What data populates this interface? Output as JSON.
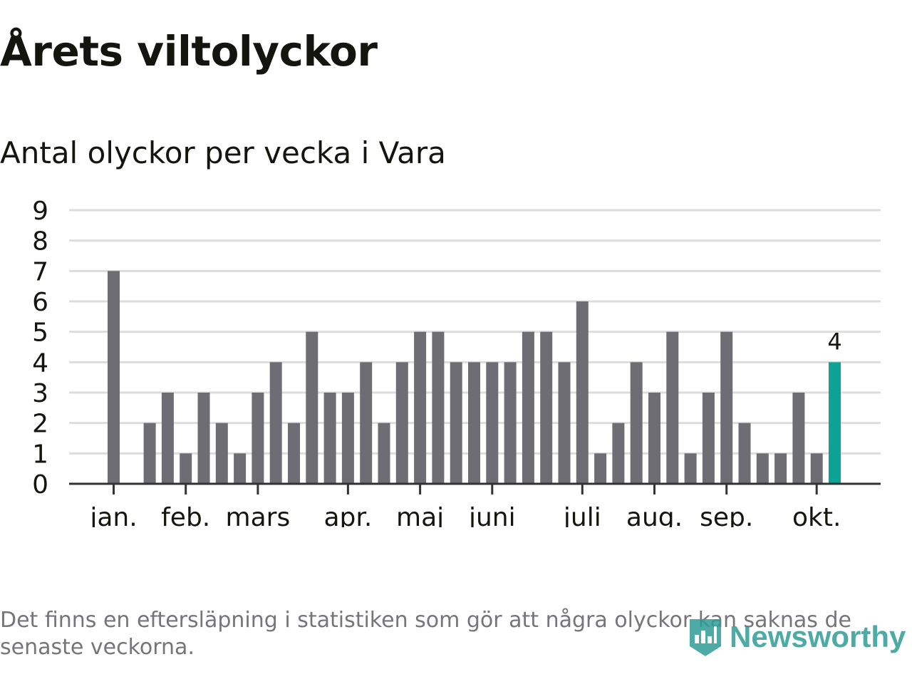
{
  "header": {
    "title": "Årets viltolyckor",
    "subtitle": "Antal olyckor per vecka i Vara"
  },
  "footnote": "Det finns en eftersläpning i statistiken som gör att några olyckor kan saknas de senaste veckorna.",
  "logo": {
    "text": "Newsworthy",
    "icon": "bar-chart-badge-icon"
  },
  "colors": {
    "bar": "#6e6d73",
    "highlight": "#0aa396",
    "grid": "#dddddd",
    "axis": "#333333",
    "text": "#15150f",
    "muted": "#75757a",
    "brand": "#2f9c95"
  },
  "chart_data": {
    "type": "bar",
    "title": "Årets viltolyckor",
    "subtitle": "Antal olyckor per vecka i Vara",
    "xlabel": "",
    "ylabel": "",
    "ylim": [
      0,
      9
    ],
    "yticks": [
      "0",
      "1",
      "2",
      "3",
      "4",
      "5",
      "6",
      "7",
      "8",
      "9"
    ],
    "grid": true,
    "values": [
      7,
      0,
      2,
      3,
      1,
      3,
      2,
      1,
      3,
      4,
      2,
      5,
      3,
      3,
      4,
      2,
      4,
      5,
      5,
      4,
      4,
      4,
      4,
      5,
      5,
      4,
      6,
      1,
      2,
      4,
      3,
      5,
      1,
      3,
      5,
      2,
      1,
      1,
      3,
      1,
      4
    ],
    "highlight_index": 40,
    "highlight_label": "4",
    "month_labels": [
      {
        "label": "jan.",
        "week": 0
      },
      {
        "label": "feb.",
        "week": 4
      },
      {
        "label": "mars",
        "week": 8
      },
      {
        "label": "apr.",
        "week": 13
      },
      {
        "label": "maj",
        "week": 17
      },
      {
        "label": "juni",
        "week": 21
      },
      {
        "label": "juli",
        "week": 26
      },
      {
        "label": "aug.",
        "week": 30
      },
      {
        "label": "sep.",
        "week": 34
      },
      {
        "label": "okt.",
        "week": 39
      }
    ]
  }
}
